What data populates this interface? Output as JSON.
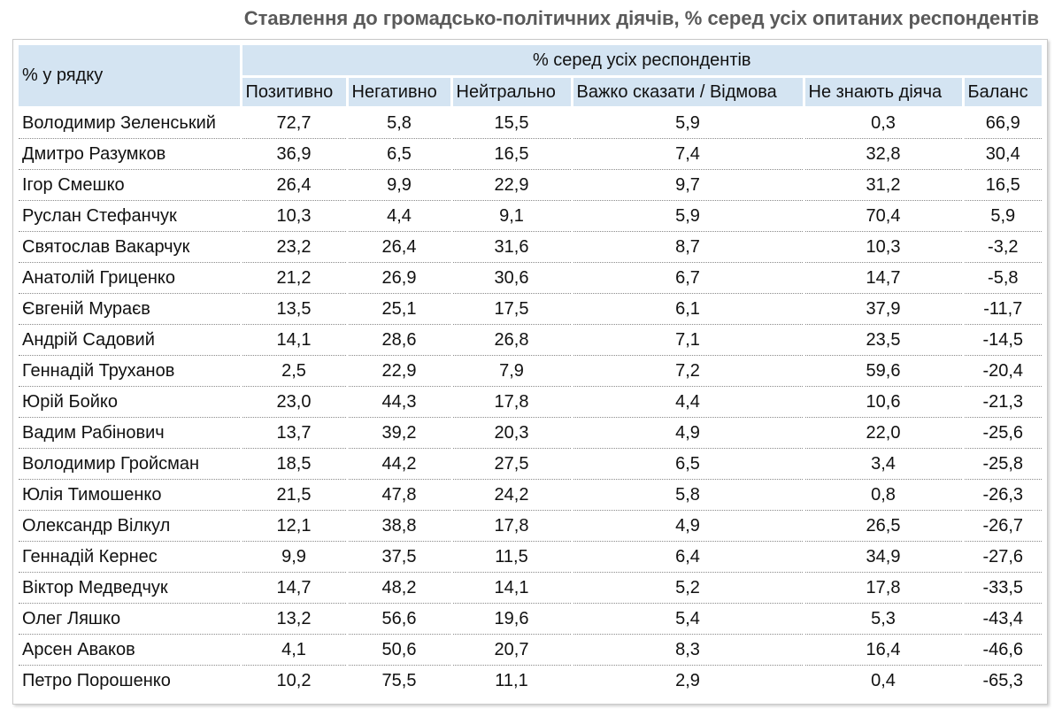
{
  "title": "Ставлення до громадсько-політичних діячів, % серед усіх опитаних респондентів",
  "table": {
    "row_header": "% у рядку",
    "group_header": "% серед усіх респондентів",
    "columns": [
      "Позитивно",
      "Негативно",
      "Нейтрально",
      "Важко сказати / Відмова",
      "Не знають діяча",
      "Баланс"
    ],
    "rows": [
      {
        "name": "Володимир Зеленський",
        "values": [
          "72,7",
          "5,8",
          "15,5",
          "5,9",
          "0,3",
          "66,9"
        ]
      },
      {
        "name": "Дмитро Разумков",
        "values": [
          "36,9",
          "6,5",
          "16,5",
          "7,4",
          "32,8",
          "30,4"
        ]
      },
      {
        "name": "Ігор Смешко",
        "values": [
          "26,4",
          "9,9",
          "22,9",
          "9,7",
          "31,2",
          "16,5"
        ]
      },
      {
        "name": "Руслан Стефанчук",
        "values": [
          "10,3",
          "4,4",
          "9,1",
          "5,9",
          "70,4",
          "5,9"
        ]
      },
      {
        "name": "Святослав Вакарчук",
        "values": [
          "23,2",
          "26,4",
          "31,6",
          "8,7",
          "10,3",
          "-3,2"
        ]
      },
      {
        "name": "Анатолій Гриценко",
        "values": [
          "21,2",
          "26,9",
          "30,6",
          "6,7",
          "14,7",
          "-5,8"
        ]
      },
      {
        "name": "Євгеній Мураєв",
        "values": [
          "13,5",
          "25,1",
          "17,5",
          "6,1",
          "37,9",
          "-11,7"
        ]
      },
      {
        "name": "Андрій Садовий",
        "values": [
          "14,1",
          "28,6",
          "26,8",
          "7,1",
          "23,5",
          "-14,5"
        ]
      },
      {
        "name": "Геннадій Труханов",
        "values": [
          "2,5",
          "22,9",
          "7,9",
          "7,2",
          "59,6",
          "-20,4"
        ]
      },
      {
        "name": "Юрій Бойко",
        "values": [
          "23,0",
          "44,3",
          "17,8",
          "4,4",
          "10,6",
          "-21,3"
        ]
      },
      {
        "name": "Вадим Рабінович",
        "values": [
          "13,7",
          "39,2",
          "20,3",
          "4,9",
          "22,0",
          "-25,6"
        ]
      },
      {
        "name": "Володимир Гройсман",
        "values": [
          "18,5",
          "44,2",
          "27,5",
          "6,5",
          "3,4",
          "-25,8"
        ]
      },
      {
        "name": "Юлія Тимошенко",
        "values": [
          "21,5",
          "47,8",
          "24,2",
          "5,8",
          "0,8",
          "-26,3"
        ]
      },
      {
        "name": "Олександр Вілкул",
        "values": [
          "12,1",
          "38,8",
          "17,8",
          "4,9",
          "26,5",
          "-26,7"
        ]
      },
      {
        "name": "Геннадій Кернес",
        "values": [
          "9,9",
          "37,5",
          "11,5",
          "6,4",
          "34,9",
          "-27,6"
        ]
      },
      {
        "name": "Віктор Медведчук",
        "values": [
          "14,7",
          "48,2",
          "14,1",
          "5,2",
          "17,8",
          "-33,5"
        ]
      },
      {
        "name": "Олег Ляшко",
        "values": [
          "13,2",
          "56,6",
          "19,6",
          "5,4",
          "5,3",
          "-43,4"
        ]
      },
      {
        "name": "Арсен Аваков",
        "values": [
          "4,1",
          "50,6",
          "20,7",
          "8,3",
          "16,4",
          "-46,6"
        ]
      },
      {
        "name": "Петро Порошенко",
        "values": [
          "10,2",
          "75,5",
          "11,1",
          "2,9",
          "0,4",
          "-65,3"
        ]
      }
    ]
  },
  "colors": {
    "title": "#5a5a5a",
    "header_bg": "#d4e4f2",
    "text": "#111111",
    "row_separator": "#8a8a8a"
  }
}
